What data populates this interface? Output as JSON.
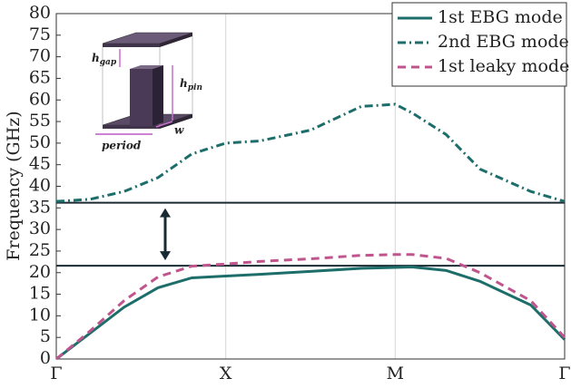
{
  "chart_data": {
    "type": "line",
    "y_label": "Frequency (GHz)",
    "x": [
      0,
      0.2,
      0.4,
      0.6,
      0.8,
      1,
      1.2,
      1.5,
      1.8,
      2,
      2.1,
      2.3,
      2.5,
      2.8,
      3
    ],
    "series": [
      {
        "name": "1st EBG mode",
        "color": "#1d6e6a",
        "dash": "solid",
        "values": [
          0,
          6,
          12,
          16.5,
          18.8,
          19.2,
          19.6,
          20.3,
          21,
          21.2,
          21.3,
          20.5,
          18,
          12.5,
          4.5
        ]
      },
      {
        "name": "2nd EBG mode",
        "color": "#1d6e6a",
        "dash": "dashdot",
        "values": [
          36.5,
          37,
          38.8,
          42,
          47.5,
          50,
          50.5,
          53,
          58.5,
          59,
          57,
          52,
          44,
          38.8,
          36.5
        ]
      },
      {
        "name": "1st leaky mode",
        "color": "#c0558e",
        "dash": "dashed",
        "values": [
          0,
          6.5,
          13.5,
          19,
          21.5,
          22,
          22.6,
          23.2,
          24,
          24.2,
          24.2,
          23.3,
          20,
          13.5,
          5
        ]
      }
    ],
    "bandgap_lines": [
      36.2,
      21.6
    ],
    "xlim": [
      0,
      3
    ],
    "xticks": [
      {
        "value": 0,
        "label": "Γ"
      },
      {
        "value": 1,
        "label": "X"
      },
      {
        "value": 2,
        "label": "M"
      },
      {
        "value": 3,
        "label": "Γ"
      }
    ],
    "ylim": [
      0,
      80
    ],
    "yticks": [
      0,
      5,
      10,
      15,
      20,
      25,
      30,
      35,
      40,
      45,
      50,
      55,
      60,
      65,
      70,
      75,
      80
    ],
    "grid": "x",
    "legend": "top-right",
    "inset_labels": {
      "h_gap": {
        "main": "h",
        "sub": "gap"
      },
      "h_pin": {
        "main": "h",
        "sub": "pin"
      },
      "w": "w",
      "period": "period"
    }
  }
}
